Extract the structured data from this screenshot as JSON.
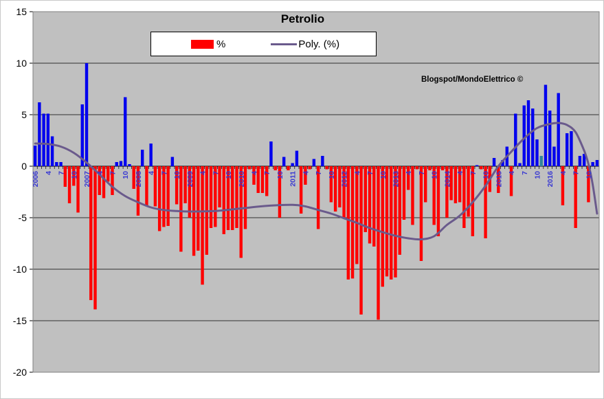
{
  "title": "Petrolio",
  "watermark": "Blogspot/MondoElettrico ©",
  "legend": {
    "bar_label": "%",
    "line_label": "Poly. (%)"
  },
  "colors": {
    "plot_bg": "#c0c0c0",
    "positive_bar": "#0000ee",
    "negative_bar": "#ff0000",
    "special_bar": "#31859c",
    "trend_line": "#6a5a8c",
    "x_label": "#3838d2",
    "grid": "#000000",
    "border": "#7f7f7f"
  },
  "chart_data": {
    "type": "bar",
    "title": "Petrolio",
    "xlabel": "",
    "ylabel": "",
    "x_unit": "month",
    "start_year": 2006,
    "ylim": [
      -20,
      15
    ],
    "grid": true,
    "legend_position": "top-center",
    "y_ticks": [
      15,
      10,
      5,
      0,
      -5,
      -10,
      -15,
      -20
    ],
    "x_tick_labels": [
      "2006",
      "4",
      "7",
      "10",
      "2007",
      "4",
      "7",
      "10",
      "2008",
      "4",
      "7",
      "10",
      "2009",
      "4",
      "7",
      "10",
      "2010",
      "4",
      "7",
      "10",
      "2011",
      "4",
      "7",
      "10",
      "2012",
      "4",
      "7",
      "10",
      "2013",
      "4",
      "7",
      "10",
      "2014",
      "4",
      "7",
      "10",
      "2015",
      "4",
      "7",
      "10",
      "2016",
      "4",
      "7",
      "10"
    ],
    "x_tick_step": 3,
    "series_name": "%",
    "values": [
      2.0,
      6.2,
      5.1,
      5.1,
      2.9,
      0.4,
      0.4,
      -2.0,
      -3.6,
      -1.9,
      -4.5,
      6.0,
      10.0,
      -13.0,
      -13.9,
      -2.8,
      -3.1,
      -1.5,
      -2.8,
      0.4,
      0.5,
      6.7,
      0.2,
      -2.2,
      -4.8,
      1.6,
      -3.9,
      2.2,
      -3.9,
      -6.3,
      -5.9,
      -5.8,
      0.9,
      -3.7,
      -8.3,
      -3.6,
      -5.0,
      -8.7,
      -8.2,
      -11.5,
      -8.6,
      -6.0,
      -5.9,
      -4.0,
      -6.6,
      -6.2,
      -6.2,
      -6.0,
      -8.9,
      -6.1,
      -0.3,
      -1.8,
      -2.6,
      -2.6,
      -2.9,
      2.4,
      -0.4,
      -5.0,
      0.9,
      -0.4,
      0.3,
      1.5,
      -4.6,
      -1.8,
      -0.3,
      0.7,
      -6.1,
      1.0,
      -0.3,
      -3.5,
      -4.4,
      -4.0,
      -5.0,
      -11.0,
      -10.9,
      -9.5,
      -14.4,
      -6.4,
      -7.5,
      -7.8,
      -14.9,
      -11.7,
      -10.7,
      -11.0,
      -10.8,
      -8.6,
      -5.2,
      -2.3,
      -5.7,
      -0.3,
      -9.2,
      -3.5,
      -0.4,
      -5.7,
      -6.8,
      -0.4,
      -5.0,
      -3.3,
      -3.6,
      -3.5,
      -6.0,
      -4.9,
      -6.8,
      0.1,
      -0.3,
      -7.0,
      -2.5,
      0.8,
      -2.6,
      0.6,
      1.9,
      -2.9,
      5.1,
      0.3,
      5.9,
      6.4,
      5.6,
      2.6,
      1.0,
      7.9,
      5.4,
      1.9,
      7.1,
      -3.8,
      3.2,
      3.4,
      -6.0,
      1.0,
      1.2,
      -3.5,
      0.4,
      0.6
    ],
    "special_color_index": 118,
    "trend": {
      "name": "Poly. (%)",
      "points": [
        [
          0,
          2.2
        ],
        [
          3,
          2.15
        ],
        [
          6,
          1.9
        ],
        [
          9,
          1.3
        ],
        [
          12,
          0.35
        ],
        [
          15,
          -0.8
        ],
        [
          18,
          -2.0
        ],
        [
          21,
          -2.9
        ],
        [
          24,
          -3.5
        ],
        [
          27,
          -4.0
        ],
        [
          30,
          -4.25
        ],
        [
          33,
          -4.35
        ],
        [
          36,
          -4.4
        ],
        [
          42,
          -4.35
        ],
        [
          48,
          -4.1
        ],
        [
          54,
          -3.85
        ],
        [
          60,
          -3.75
        ],
        [
          63,
          -3.9
        ],
        [
          66,
          -4.25
        ],
        [
          69,
          -4.6
        ],
        [
          72,
          -5.05
        ],
        [
          75,
          -5.5
        ],
        [
          78,
          -6.0
        ],
        [
          81,
          -6.4
        ],
        [
          84,
          -6.75
        ],
        [
          87,
          -7.0
        ],
        [
          90,
          -7.1
        ],
        [
          93,
          -6.8
        ],
        [
          96,
          -5.7
        ],
        [
          99,
          -4.8
        ],
        [
          102,
          -3.5
        ],
        [
          105,
          -1.9
        ],
        [
          108,
          0.0
        ],
        [
          111,
          1.4
        ],
        [
          114,
          2.7
        ],
        [
          117,
          3.7
        ],
        [
          120,
          4.1
        ],
        [
          122,
          4.2
        ],
        [
          124,
          4.0
        ],
        [
          126,
          3.3
        ],
        [
          128,
          1.5
        ],
        [
          129,
          0.2
        ],
        [
          130,
          -1.8
        ],
        [
          131,
          -4.6
        ]
      ]
    }
  }
}
